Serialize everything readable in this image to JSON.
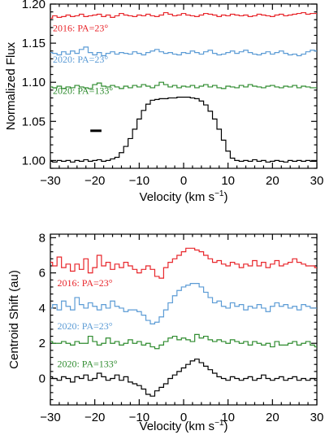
{
  "chart_data": [
    {
      "type": "line",
      "step": true,
      "xlabel": "Velocity (km s",
      "xlabel_sup": "−1",
      "xlabel_close": ")",
      "ylabel": "Normalized Flux",
      "xlim": [
        -30,
        30
      ],
      "ylim": [
        0.99,
        1.2
      ],
      "xticks": [
        "−30",
        "−20",
        "−10",
        "0",
        "10",
        "20",
        "30"
      ],
      "xtick_values": [
        -30,
        -20,
        -10,
        0,
        10,
        20,
        30
      ],
      "yticks": [
        "1.00",
        "1.05",
        "1.10",
        "1.15",
        "1.20"
      ],
      "ytick_values": [
        1.0,
        1.05,
        1.1,
        1.15,
        1.2
      ],
      "marker": {
        "x": [
          -21,
          -18.5
        ],
        "y": 1.038,
        "color": "#000000"
      },
      "series": [
        {
          "name": "2016: PA=23°",
          "color": "#e8262b",
          "label_pos": [
            -30,
            1.165
          ],
          "x": [
            -30,
            -29,
            -28,
            -27,
            -26,
            -25,
            -24,
            -23,
            -22,
            -21,
            -20,
            -19,
            -18,
            -17,
            -16,
            -15,
            -14,
            -13,
            -12,
            -11,
            -10,
            -9,
            -8,
            -7,
            -6,
            -5,
            -4,
            -3,
            -2,
            -1,
            0,
            1,
            2,
            3,
            4,
            5,
            6,
            7,
            8,
            9,
            10,
            11,
            12,
            13,
            14,
            15,
            16,
            17,
            18,
            19,
            20,
            21,
            22,
            23,
            24,
            25,
            26,
            27,
            28,
            29,
            30
          ],
          "y": [
            1.182,
            1.185,
            1.183,
            1.184,
            1.186,
            1.184,
            1.185,
            1.187,
            1.184,
            1.185,
            1.186,
            1.187,
            1.184,
            1.186,
            1.183,
            1.185,
            1.188,
            1.186,
            1.185,
            1.184,
            1.186,
            1.185,
            1.187,
            1.185,
            1.184,
            1.186,
            1.189,
            1.187,
            1.185,
            1.186,
            1.188,
            1.186,
            1.185,
            1.184,
            1.186,
            1.188,
            1.187,
            1.186,
            1.184,
            1.186,
            1.185,
            1.187,
            1.186,
            1.185,
            1.186,
            1.184,
            1.185,
            1.187,
            1.186,
            1.185,
            1.184,
            1.186,
            1.187,
            1.185,
            1.186,
            1.187,
            1.188,
            1.189,
            1.187,
            1.188,
            1.188
          ]
        },
        {
          "name": "2020: PA=23°",
          "color": "#5b9bd5",
          "label_pos": [
            -30,
            1.125
          ],
          "x": [
            -30,
            -29,
            -28,
            -27,
            -26,
            -25,
            -24,
            -23,
            -22,
            -21,
            -20,
            -19,
            -18,
            -17,
            -16,
            -15,
            -14,
            -13,
            -12,
            -11,
            -10,
            -9,
            -8,
            -7,
            -6,
            -5,
            -4,
            -3,
            -2,
            -1,
            0,
            1,
            2,
            3,
            4,
            5,
            6,
            7,
            8,
            9,
            10,
            11,
            12,
            13,
            14,
            15,
            16,
            17,
            18,
            19,
            20,
            21,
            22,
            23,
            24,
            25,
            26,
            27,
            28,
            29,
            30
          ],
          "y": [
            1.138,
            1.137,
            1.135,
            1.139,
            1.136,
            1.14,
            1.137,
            1.142,
            1.145,
            1.138,
            1.135,
            1.138,
            1.134,
            1.137,
            1.139,
            1.136,
            1.138,
            1.137,
            1.136,
            1.139,
            1.137,
            1.135,
            1.138,
            1.14,
            1.142,
            1.139,
            1.137,
            1.138,
            1.136,
            1.135,
            1.138,
            1.137,
            1.14,
            1.138,
            1.136,
            1.139,
            1.141,
            1.137,
            1.135,
            1.136,
            1.138,
            1.14,
            1.137,
            1.139,
            1.141,
            1.138,
            1.136,
            1.135,
            1.137,
            1.139,
            1.136,
            1.138,
            1.14,
            1.137,
            1.135,
            1.136,
            1.134,
            1.136,
            1.139,
            1.141,
            1.14
          ]
        },
        {
          "name": "2020: PA=133°",
          "color": "#2e8b2e",
          "label_pos": [
            -30,
            1.085
          ],
          "x": [
            -30,
            -29,
            -28,
            -27,
            -26,
            -25,
            -24,
            -23,
            -22,
            -21,
            -20,
            -19,
            -18,
            -17,
            -16,
            -15,
            -14,
            -13,
            -12,
            -11,
            -10,
            -9,
            -8,
            -7,
            -6,
            -5,
            -4,
            -3,
            -2,
            -1,
            0,
            1,
            2,
            3,
            4,
            5,
            6,
            7,
            8,
            9,
            10,
            11,
            12,
            13,
            14,
            15,
            16,
            17,
            18,
            19,
            20,
            21,
            22,
            23,
            24,
            25,
            26,
            27,
            28,
            29,
            30
          ],
          "y": [
            1.094,
            1.093,
            1.095,
            1.092,
            1.094,
            1.093,
            1.096,
            1.094,
            1.093,
            1.092,
            1.097,
            1.099,
            1.095,
            1.094,
            1.096,
            1.094,
            1.092,
            1.095,
            1.093,
            1.096,
            1.094,
            1.097,
            1.095,
            1.093,
            1.096,
            1.1,
            1.097,
            1.094,
            1.096,
            1.093,
            1.095,
            1.094,
            1.096,
            1.093,
            1.095,
            1.097,
            1.094,
            1.096,
            1.093,
            1.092,
            1.095,
            1.094,
            1.093,
            1.096,
            1.094,
            1.097,
            1.095,
            1.094,
            1.093,
            1.095,
            1.096,
            1.094,
            1.093,
            1.095,
            1.094,
            1.096,
            1.093,
            1.095,
            1.094,
            1.093,
            1.093
          ]
        },
        {
          "name": "",
          "color": "#000000",
          "x": [
            -30,
            -29,
            -28,
            -27,
            -26,
            -25,
            -24,
            -23,
            -22,
            -21,
            -20,
            -19,
            -18,
            -17,
            -16,
            -15,
            -14,
            -13,
            -12,
            -11,
            -10,
            -9,
            -8,
            -7,
            -6,
            -5,
            -4,
            -3,
            -2,
            -1,
            0,
            1,
            2,
            3,
            4,
            5,
            6,
            7,
            8,
            9,
            10,
            11,
            12,
            13,
            14,
            15,
            16,
            17,
            18,
            19,
            20,
            21,
            22,
            23,
            24,
            25,
            26,
            27,
            28,
            29,
            30
          ],
          "y": [
            0.999,
            0.998,
            1.0,
            0.999,
            1.0,
            0.998,
            1.0,
            0.999,
            1.001,
            0.999,
            1.0,
            1.001,
            0.999,
            1.0,
            1.002,
            1.004,
            1.01,
            1.018,
            1.028,
            1.04,
            1.053,
            1.064,
            1.072,
            1.077,
            1.078,
            1.079,
            1.079,
            1.08,
            1.08,
            1.081,
            1.081,
            1.081,
            1.08,
            1.079,
            1.076,
            1.071,
            1.063,
            1.053,
            1.04,
            1.026,
            1.012,
            1.003,
            1.0,
            0.999,
            1.0,
            0.999,
            1.001,
            0.999,
            1.0,
            0.998,
            0.999,
            1.0,
            0.999,
            0.998,
            1.0,
            0.999,
            1.0,
            0.999,
            1.0,
            0.999,
            0.999
          ]
        }
      ]
    },
    {
      "type": "line",
      "step": true,
      "xlabel": "Velocity (km s",
      "xlabel_sup": "−1",
      "xlabel_close": ")",
      "ylabel": "Centroid Shift (au)",
      "xlim": [
        -30,
        30
      ],
      "ylim": [
        -1.5,
        8.2
      ],
      "xticks": [
        "−30",
        "−20",
        "−10",
        "0",
        "10",
        "20",
        "30"
      ],
      "xtick_values": [
        -30,
        -20,
        -10,
        0,
        10,
        20,
        30
      ],
      "yticks": [
        "0",
        "2",
        "4",
        "6",
        "8"
      ],
      "ytick_values": [
        0,
        2,
        4,
        6,
        8
      ],
      "series": [
        {
          "name": "2016: PA=23°",
          "color": "#e8262b",
          "label_pos": [
            -29,
            5.25
          ],
          "x": [
            -30,
            -29,
            -28,
            -27,
            -26,
            -25,
            -24,
            -23,
            -22,
            -21,
            -20,
            -19,
            -18,
            -17,
            -16,
            -15,
            -14,
            -13,
            -12,
            -11,
            -10,
            -9,
            -8,
            -7,
            -6,
            -5,
            -4,
            -3,
            -2,
            -1,
            0,
            1,
            2,
            3,
            4,
            5,
            6,
            7,
            8,
            9,
            10,
            11,
            12,
            13,
            14,
            15,
            16,
            17,
            18,
            19,
            20,
            21,
            22,
            23,
            24,
            25,
            26,
            27,
            28,
            29,
            30
          ],
          "y": [
            6.6,
            6.4,
            6.9,
            6.3,
            6.5,
            6.1,
            6.5,
            6.2,
            6.8,
            6.0,
            6.3,
            7.0,
            6.4,
            6.6,
            6.2,
            6.5,
            6.3,
            6.6,
            6.4,
            6.2,
            6.0,
            6.2,
            6.4,
            6.2,
            5.8,
            5.7,
            6.3,
            6.6,
            6.8,
            7.0,
            7.2,
            7.4,
            7.4,
            7.3,
            7.2,
            7.0,
            6.8,
            6.6,
            6.7,
            6.5,
            6.4,
            6.6,
            6.5,
            6.3,
            6.5,
            6.4,
            6.7,
            6.4,
            6.6,
            6.3,
            6.5,
            6.7,
            6.4,
            6.5,
            6.6,
            6.8,
            6.6,
            6.5,
            6.4,
            6.4,
            6.3
          ]
        },
        {
          "name": "2020: PA=23°",
          "color": "#5b9bd5",
          "label_pos": [
            -29,
            2.8
          ],
          "x": [
            -30,
            -29,
            -28,
            -27,
            -26,
            -25,
            -24,
            -23,
            -22,
            -21,
            -20,
            -19,
            -18,
            -17,
            -16,
            -15,
            -14,
            -13,
            -12,
            -11,
            -10,
            -9,
            -8,
            -7,
            -6,
            -5,
            -4,
            -3,
            -2,
            -1,
            0,
            1,
            2,
            3,
            4,
            5,
            6,
            7,
            8,
            9,
            10,
            11,
            12,
            13,
            14,
            15,
            16,
            17,
            18,
            19,
            20,
            21,
            22,
            23,
            24,
            25,
            26,
            27,
            28,
            29,
            30
          ],
          "y": [
            4.0,
            4.2,
            3.9,
            4.4,
            4.1,
            3.9,
            4.6,
            4.2,
            4.0,
            4.3,
            4.1,
            3.9,
            4.2,
            4.0,
            4.4,
            4.1,
            4.0,
            3.8,
            3.9,
            3.9,
            3.8,
            3.6,
            3.3,
            3.1,
            3.2,
            3.5,
            3.9,
            4.3,
            4.7,
            5.0,
            5.2,
            5.3,
            5.4,
            5.4,
            5.2,
            4.9,
            4.6,
            4.3,
            4.4,
            4.1,
            4.0,
            4.3,
            4.1,
            4.2,
            3.9,
            4.1,
            4.0,
            4.2,
            4.0,
            3.8,
            4.1,
            4.3,
            4.1,
            4.2,
            4.0,
            4.1,
            3.9,
            4.2,
            4.1,
            4.0,
            4.0
          ]
        },
        {
          "name": "2020: PA=133°",
          "color": "#2e8b2e",
          "label_pos": [
            -29,
            0.65
          ],
          "x": [
            -30,
            -29,
            -28,
            -27,
            -26,
            -25,
            -24,
            -23,
            -22,
            -21,
            -20,
            -19,
            -18,
            -17,
            -16,
            -15,
            -14,
            -13,
            -12,
            -11,
            -10,
            -9,
            -8,
            -7,
            -6,
            -5,
            -4,
            -3,
            -2,
            -1,
            0,
            1,
            2,
            3,
            4,
            5,
            6,
            7,
            8,
            9,
            10,
            11,
            12,
            13,
            14,
            15,
            16,
            17,
            18,
            19,
            20,
            21,
            22,
            23,
            24,
            25,
            26,
            27,
            28,
            29,
            30
          ],
          "y": [
            2.1,
            2.0,
            2.0,
            2.1,
            2.0,
            1.9,
            2.1,
            2.0,
            2.0,
            2.4,
            2.1,
            1.9,
            2.0,
            2.3,
            2.0,
            2.1,
            1.9,
            2.0,
            2.2,
            2.0,
            2.1,
            1.9,
            2.0,
            1.8,
            1.7,
            1.9,
            2.1,
            2.3,
            2.4,
            2.2,
            2.3,
            2.2,
            2.1,
            2.5,
            2.3,
            2.4,
            2.2,
            2.1,
            2.2,
            2.1,
            2.0,
            2.2,
            2.1,
            2.0,
            2.1,
            1.9,
            2.1,
            2.0,
            1.9,
            2.0,
            1.8,
            2.1,
            1.9,
            1.9,
            2.0,
            2.1,
            1.9,
            2.0,
            2.1,
            1.9,
            1.8
          ]
        },
        {
          "name": "",
          "color": "#000000",
          "x": [
            -30,
            -29,
            -28,
            -27,
            -26,
            -25,
            -24,
            -23,
            -22,
            -21,
            -20,
            -19,
            -18,
            -17,
            -16,
            -15,
            -14,
            -13,
            -12,
            -11,
            -10,
            -9,
            -8,
            -7,
            -6,
            -5,
            -4,
            -3,
            -2,
            -1,
            0,
            1,
            2,
            3,
            4,
            5,
            6,
            7,
            8,
            9,
            10,
            11,
            12,
            13,
            14,
            15,
            16,
            17,
            18,
            19,
            20,
            21,
            22,
            23,
            24,
            25,
            26,
            27,
            28,
            29,
            30
          ],
          "y": [
            0.1,
            0.0,
            -0.1,
            0.1,
            0.0,
            -0.2,
            0.1,
            0.0,
            0.2,
            -0.1,
            0.0,
            0.3,
            0.1,
            -0.1,
            0.0,
            0.2,
            -0.1,
            0.1,
            -0.2,
            -0.3,
            -0.4,
            -0.6,
            -0.9,
            -1.0,
            -0.7,
            -0.5,
            -0.3,
            0.0,
            0.2,
            0.4,
            0.6,
            0.8,
            1.0,
            1.1,
            0.9,
            0.7,
            0.5,
            0.3,
            0.1,
            0.0,
            -0.1,
            0.1,
            0.0,
            -0.1,
            0.0,
            0.1,
            -0.1,
            0.0,
            0.2,
            0.0,
            -0.1,
            0.0,
            0.1,
            -0.1,
            0.0,
            0.1,
            -0.1,
            0.0,
            -0.1,
            0.0,
            -0.1
          ]
        }
      ]
    }
  ]
}
